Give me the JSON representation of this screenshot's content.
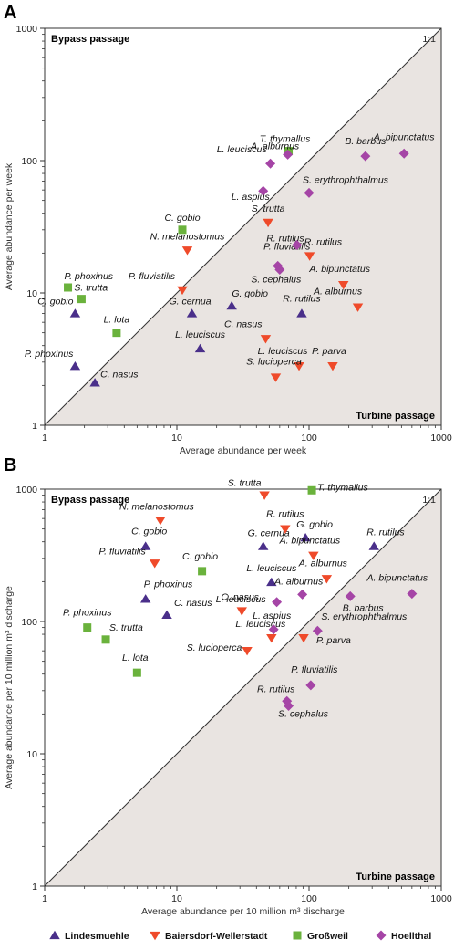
{
  "figure": {
    "panels": [
      "A",
      "B"
    ],
    "corner_labels": {
      "top_left": "Bypass passage",
      "bottom_right": "Turbine passage",
      "diagonal": "1:1"
    }
  },
  "legend": [
    {
      "name": "Lindesmuehle",
      "shape": "triangle-up",
      "color": "#4a2f8a"
    },
    {
      "name": "Baiersdorf-Wellerstadt",
      "shape": "triangle-down",
      "color": "#ef4a2a"
    },
    {
      "name": "Großweil",
      "shape": "square",
      "color": "#6ab23c"
    },
    {
      "name": "Hoellthal",
      "shape": "diamond",
      "color": "#a545a6"
    }
  ],
  "colors": {
    "turbine_region": "#e9e4e1",
    "frame": "#333333"
  },
  "chart_data": [
    {
      "panel": "A",
      "type": "scatter",
      "xlabel": "Average abundance per week",
      "ylabel": "Average abundance per week",
      "xscale": "log",
      "yscale": "log",
      "xlim": [
        1,
        1000
      ],
      "ylim": [
        1,
        1000
      ],
      "x_ticks": [
        "1",
        "10",
        "100",
        "1000"
      ],
      "y_ticks": [
        "1",
        "10",
        "100",
        "1000"
      ],
      "series": [
        {
          "name": "Lindesmuehle",
          "points": [
            {
              "label": "C. gobio",
              "x": 1.7,
              "y": 7
            },
            {
              "label": "P. phoxinus",
              "x": 1.7,
              "y": 2.8
            },
            {
              "label": "C. nasus",
              "x": 2.4,
              "y": 2.1
            },
            {
              "label": "G. cernua",
              "x": 13,
              "y": 7
            },
            {
              "label": "G. gobio",
              "x": 26,
              "y": 8
            },
            {
              "label": "L. leuciscus",
              "x": 15,
              "y": 3.8
            },
            {
              "label": "R. rutilus",
              "x": 88,
              "y": 7
            }
          ]
        },
        {
          "name": "Baiersdorf-Wellerstadt",
          "points": [
            {
              "label": "N. melanostomus",
              "x": 12,
              "y": 21
            },
            {
              "label": "P. fluviatilis",
              "x": 11,
              "y": 10.5
            },
            {
              "label": "S. trutta",
              "x": 49,
              "y": 34
            },
            {
              "label": "R. rutilus",
              "x": 101,
              "y": 19
            },
            {
              "label": "A. bipunctatus",
              "x": 182,
              "y": 11.5
            },
            {
              "label": "A. alburnus",
              "x": 234,
              "y": 7.8
            },
            {
              "label": "C. nasus",
              "x": 47,
              "y": 4.5
            },
            {
              "label": "L. leuciscus",
              "x": 84,
              "y": 2.8
            },
            {
              "label": "S. lucioperca",
              "x": 56,
              "y": 2.3
            },
            {
              "label": "P. parva",
              "x": 151,
              "y": 2.8
            }
          ]
        },
        {
          "name": "Großweil",
          "points": [
            {
              "label": "P. phoxinus",
              "x": 1.5,
              "y": 11
            },
            {
              "label": "S. trutta",
              "x": 1.9,
              "y": 9
            },
            {
              "label": "L. lota",
              "x": 3.5,
              "y": 5
            },
            {
              "label": "C. gobio",
              "x": 11,
              "y": 30
            },
            {
              "label": "T. thymallus",
              "x": 70,
              "y": 118
            }
          ]
        },
        {
          "name": "Hoellthal",
          "points": [
            {
              "label": "A. alburnus",
              "x": 69,
              "y": 111
            },
            {
              "label": "L. leuciscus",
              "x": 51,
              "y": 95
            },
            {
              "label": "L. aspius",
              "x": 45,
              "y": 59
            },
            {
              "label": "S. erythrophthalmus",
              "x": 100,
              "y": 57
            },
            {
              "label": "B. barbus",
              "x": 267,
              "y": 108
            },
            {
              "label": "A. bipunctatus",
              "x": 523,
              "y": 113
            },
            {
              "label": "P. fluviatilis",
              "x": 58,
              "y": 16
            },
            {
              "label": "R. rutilus",
              "x": 81,
              "y": 23
            },
            {
              "label": "S. cephalus",
              "x": 60,
              "y": 15
            }
          ]
        }
      ]
    },
    {
      "panel": "B",
      "type": "scatter",
      "xlabel": "Average abundance per 10 million m³ discharge",
      "ylabel": "Average abundance per 10 million m³ discharge",
      "xscale": "log",
      "yscale": "log",
      "xlim": [
        1,
        1000
      ],
      "ylim": [
        1,
        1000
      ],
      "x_ticks": [
        "1",
        "10",
        "100",
        "1000"
      ],
      "y_ticks": [
        "1",
        "10",
        "100",
        "1000"
      ],
      "series": [
        {
          "name": "Lindesmuehle",
          "points": [
            {
              "label": "C. gobio",
              "x": 5.8,
              "y": 370
            },
            {
              "label": "P. phoxinus",
              "x": 5.8,
              "y": 148
            },
            {
              "label": "C. nasus",
              "x": 8.4,
              "y": 112
            },
            {
              "label": "G. cernua",
              "x": 45,
              "y": 370
            },
            {
              "label": "G. gobio",
              "x": 94,
              "y": 430
            },
            {
              "label": "L. leuciscus",
              "x": 52,
              "y": 198
            },
            {
              "label": "R. rutilus",
              "x": 310,
              "y": 370
            }
          ]
        },
        {
          "name": "Baiersdorf-Wellerstadt",
          "points": [
            {
              "label": "N. melanostomus",
              "x": 7.5,
              "y": 580
            },
            {
              "label": "P. fluviatilis",
              "x": 6.8,
              "y": 275
            },
            {
              "label": "S. trutta",
              "x": 46,
              "y": 900
            },
            {
              "label": "R. rutilus",
              "x": 66,
              "y": 500
            },
            {
              "label": "A. bipunctatus",
              "x": 108,
              "y": 315
            },
            {
              "label": "A. alburnus",
              "x": 136,
              "y": 210
            },
            {
              "label": "C. nasus",
              "x": 31,
              "y": 120
            },
            {
              "label": "L. leuciscus",
              "x": 52,
              "y": 75
            },
            {
              "label": "S. lucioperca",
              "x": 34,
              "y": 60
            },
            {
              "label": "P. parva",
              "x": 91,
              "y": 75
            }
          ]
        },
        {
          "name": "Großweil",
          "points": [
            {
              "label": "P. phoxinus",
              "x": 2.1,
              "y": 90
            },
            {
              "label": "S. trutta",
              "x": 2.9,
              "y": 73
            },
            {
              "label": "L. lota",
              "x": 5,
              "y": 41
            },
            {
              "label": "C. gobio",
              "x": 15.5,
              "y": 240
            },
            {
              "label": "T. thymallus",
              "x": 105,
              "y": 980
            }
          ]
        },
        {
          "name": "Hoellthal",
          "points": [
            {
              "label": "L. leuciscus",
              "x": 57,
              "y": 140
            },
            {
              "label": "A. alburnus",
              "x": 89,
              "y": 160
            },
            {
              "label": "L. aspius",
              "x": 54,
              "y": 87
            },
            {
              "label": "S. erythrophthalmus",
              "x": 116,
              "y": 85
            },
            {
              "label": "B. barbus",
              "x": 205,
              "y": 155
            },
            {
              "label": "A. bipunctatus",
              "x": 600,
              "y": 162
            },
            {
              "label": "P. fluviatilis",
              "x": 103,
              "y": 33
            },
            {
              "label": "R. rutilus",
              "x": 68,
              "y": 25
            },
            {
              "label": "S. cephalus",
              "x": 70,
              "y": 23
            }
          ]
        }
      ]
    }
  ]
}
